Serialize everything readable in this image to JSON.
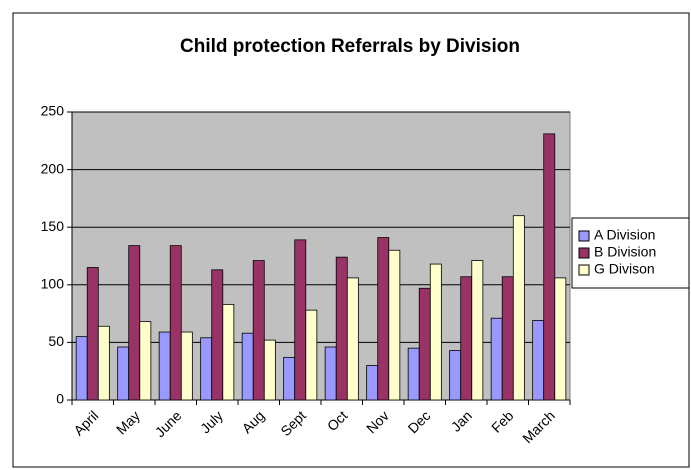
{
  "chart_data": {
    "type": "bar",
    "title": "Child protection Referrals by Division",
    "categories": [
      "April",
      "May",
      "June",
      "July",
      "Aug",
      "Sept",
      "Oct",
      "Nov",
      "Dec",
      "Jan",
      "Feb",
      "March"
    ],
    "series": [
      {
        "name": "A Division",
        "color": "#9999ff",
        "values": [
          55,
          46,
          59,
          54,
          58,
          37,
          46,
          30,
          45,
          43,
          71,
          69
        ]
      },
      {
        "name": "B Division",
        "color": "#993366",
        "values": [
          115,
          134,
          134,
          113,
          121,
          139,
          124,
          141,
          97,
          107,
          107,
          231
        ]
      },
      {
        "name": "G Divison",
        "color": "#ffffcc",
        "values": [
          64,
          68,
          59,
          83,
          52,
          78,
          106,
          130,
          118,
          121,
          160,
          106
        ]
      }
    ],
    "ylim": [
      0,
      250
    ],
    "yticks": [
      0,
      50,
      100,
      150,
      200,
      250
    ],
    "grid": true,
    "legend": "right"
  }
}
